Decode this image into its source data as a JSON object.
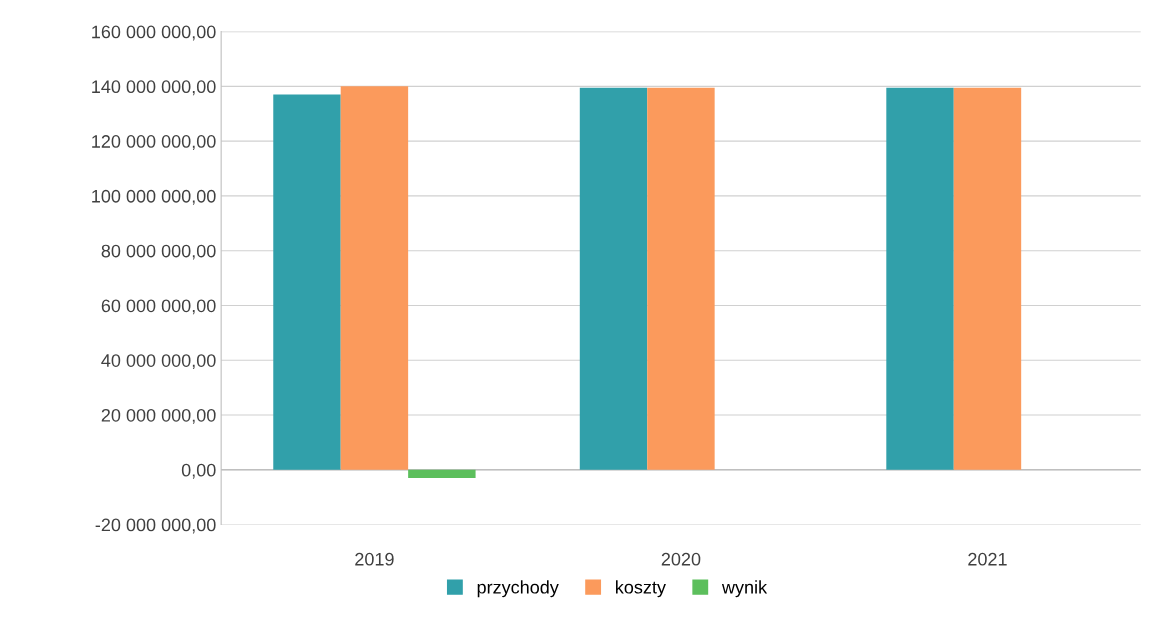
{
  "chart_data": {
    "type": "bar",
    "categories": [
      "2019",
      "2020",
      "2021"
    ],
    "series": [
      {
        "name": "przychody",
        "color": "#31a0aa",
        "values": [
          137000000,
          139500000,
          139500000
        ]
      },
      {
        "name": "koszty",
        "color": "#fb9a5c",
        "values": [
          140000000,
          139500000,
          139500000
        ]
      },
      {
        "name": "wynik",
        "color": "#5cbf5c",
        "values": [
          -3000000,
          0,
          0
        ]
      }
    ],
    "ylim": [
      -20000000,
      160000000
    ],
    "yticks": [
      {
        "value": -20000000,
        "label": "-20 000 000,00"
      },
      {
        "value": 0,
        "label": "0,00"
      },
      {
        "value": 20000000,
        "label": "20 000 000,00"
      },
      {
        "value": 40000000,
        "label": "40 000 000,00"
      },
      {
        "value": 60000000,
        "label": "60 000 000,00"
      },
      {
        "value": 80000000,
        "label": "80 000 000,00"
      },
      {
        "value": 100000000,
        "label": "100 000 000,00"
      },
      {
        "value": 120000000,
        "label": "120 000 000,00"
      },
      {
        "value": 140000000,
        "label": "140 000 000,00"
      },
      {
        "value": 160000000,
        "label": "160 000 000,00"
      }
    ],
    "grid": "y",
    "legend": "bottom"
  }
}
